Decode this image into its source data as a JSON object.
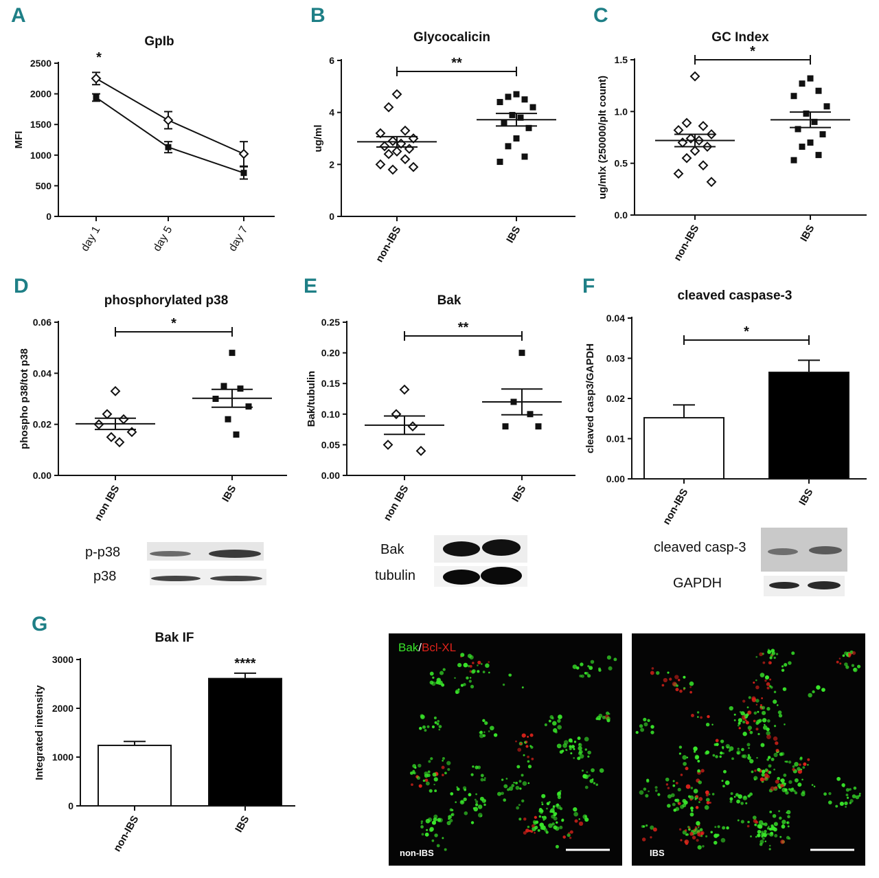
{
  "panel_letters": [
    "A",
    "B",
    "C",
    "D",
    "E",
    "F",
    "G"
  ],
  "chart_data": [
    {
      "panel": "A",
      "type": "line",
      "title": "GpIb",
      "xlabel": "",
      "ylabel": "MFI",
      "categories": [
        "day 1",
        "day 5",
        "day 7"
      ],
      "ylim": [
        0,
        2500
      ],
      "yticks": [
        0,
        500,
        1000,
        1500,
        2000,
        2500
      ],
      "series": [
        {
          "marker": "open-diamond",
          "values": [
            2250,
            1570,
            1020
          ],
          "errors": [
            100,
            140,
            200
          ]
        },
        {
          "marker": "filled-square",
          "values": [
            1940,
            1130,
            710
          ],
          "errors": [
            60,
            90,
            100
          ]
        }
      ],
      "annotations": [
        {
          "text": "*",
          "category": "day 1"
        }
      ]
    },
    {
      "panel": "B",
      "type": "scatter",
      "title": "Glycocalicin",
      "xlabel": "",
      "ylabel": "ug/ml",
      "categories": [
        "non-IBS",
        "IBS"
      ],
      "ylim": [
        0,
        6
      ],
      "yticks": [
        0,
        2,
        4,
        6
      ],
      "groups": [
        {
          "category": "non-IBS",
          "marker": "open-diamond",
          "mean": 2.87,
          "sem": 0.2,
          "values": [
            4.7,
            4.2,
            3.3,
            3.2,
            3.0,
            2.9,
            2.8,
            2.7,
            2.6,
            2.5,
            2.4,
            2.2,
            2.0,
            1.9,
            1.8
          ]
        },
        {
          "category": "IBS",
          "marker": "filled-square",
          "mean": 3.72,
          "sem": 0.24,
          "values": [
            4.7,
            4.6,
            4.5,
            4.4,
            4.2,
            3.9,
            3.8,
            3.6,
            3.4,
            3.0,
            2.7,
            2.3,
            2.1
          ]
        }
      ],
      "significance": "**"
    },
    {
      "panel": "C",
      "type": "scatter",
      "title": "GC Index",
      "xlabel": "",
      "ylabel": "ug/mlx (250000/plt count)",
      "categories": [
        "non-IBS",
        "IBS"
      ],
      "ylim": [
        0,
        1.5
      ],
      "yticks": [
        0.0,
        0.5,
        1.0,
        1.5
      ],
      "groups": [
        {
          "category": "non-IBS",
          "marker": "open-diamond",
          "mean": 0.72,
          "sem": 0.06,
          "values": [
            1.34,
            0.89,
            0.86,
            0.82,
            0.78,
            0.74,
            0.72,
            0.7,
            0.66,
            0.62,
            0.55,
            0.48,
            0.4,
            0.32
          ]
        },
        {
          "category": "IBS",
          "marker": "filled-square",
          "mean": 0.92,
          "sem": 0.075,
          "values": [
            1.32,
            1.27,
            1.2,
            1.15,
            1.05,
            0.98,
            0.9,
            0.83,
            0.78,
            0.7,
            0.66,
            0.58,
            0.53
          ]
        }
      ],
      "significance": "*"
    },
    {
      "panel": "D",
      "type": "scatter",
      "title": "phosphorylated p38",
      "xlabel": "",
      "ylabel": "phospho p38/tot p38",
      "categories": [
        "non IBS",
        "IBS"
      ],
      "ylim": [
        0,
        0.06
      ],
      "yticks": [
        "0.00",
        "0.02",
        "0.04",
        "0.06"
      ],
      "groups": [
        {
          "category": "non IBS",
          "marker": "open-diamond",
          "mean": 0.0202,
          "sem": 0.0022,
          "values": [
            0.033,
            0.024,
            0.022,
            0.02,
            0.017,
            0.015,
            0.013
          ]
        },
        {
          "category": "IBS",
          "marker": "filled-square",
          "mean": 0.0302,
          "sem": 0.0035,
          "values": [
            0.048,
            0.035,
            0.034,
            0.03,
            0.027,
            0.022,
            0.016
          ]
        }
      ],
      "significance": "*"
    },
    {
      "panel": "E",
      "type": "scatter",
      "title": "Bak",
      "xlabel": "",
      "ylabel": "Bak/tubulin",
      "categories": [
        "non IBS",
        "IBS"
      ],
      "ylim": [
        0,
        0.25
      ],
      "yticks": [
        "0.00",
        "0.05",
        "0.10",
        "0.15",
        "0.20",
        "0.25"
      ],
      "groups": [
        {
          "category": "non IBS",
          "marker": "open-diamond",
          "mean": 0.082,
          "sem": 0.015,
          "values": [
            0.14,
            0.1,
            0.08,
            0.05,
            0.04
          ]
        },
        {
          "category": "IBS",
          "marker": "filled-square",
          "mean": 0.12,
          "sem": 0.021,
          "values": [
            0.2,
            0.12,
            0.1,
            0.08,
            0.08
          ]
        }
      ],
      "significance": "**"
    },
    {
      "panel": "F",
      "type": "bar",
      "title": "cleaved caspase-3",
      "xlabel": "",
      "ylabel": "cleaved casp3/GAPDH",
      "categories": [
        "non-IBS",
        "IBS"
      ],
      "ylim": [
        0,
        0.04
      ],
      "yticks": [
        "0.00",
        "0.01",
        "0.02",
        "0.03",
        "0.04"
      ],
      "values": [
        0.0152,
        0.0265
      ],
      "errors": [
        0.0032,
        0.003
      ],
      "significance": "*"
    },
    {
      "panel": "G",
      "type": "bar",
      "title": "Bak IF",
      "xlabel": "",
      "ylabel": "Integrated intensity",
      "categories": [
        "non-IBS",
        "IBS"
      ],
      "ylim": [
        0,
        3000
      ],
      "yticks": [
        0,
        1000,
        2000,
        3000
      ],
      "values": [
        1240,
        2610
      ],
      "errors": [
        80,
        110
      ],
      "significance": "****"
    }
  ],
  "blots": {
    "D": {
      "labels": [
        "p-p38",
        "p38"
      ]
    },
    "E": {
      "labels": [
        "Bak",
        "tubulin"
      ]
    },
    "F": {
      "labels": [
        "cleaved casp-3",
        "GAPDH"
      ]
    }
  },
  "if_images": {
    "legend_green": "Bak",
    "legend_sep": "/",
    "legend_red": "Bcl-XL",
    "captions": [
      "non-IBS",
      "IBS"
    ],
    "colors": {
      "green": "#39e82a",
      "red": "#e0231b",
      "background": "#050505"
    }
  },
  "colors": {
    "panel_letter": "#1e7f86",
    "bar_ibs": "#000000",
    "bar_non_ibs": "#ffffff",
    "ink": "#111111"
  }
}
